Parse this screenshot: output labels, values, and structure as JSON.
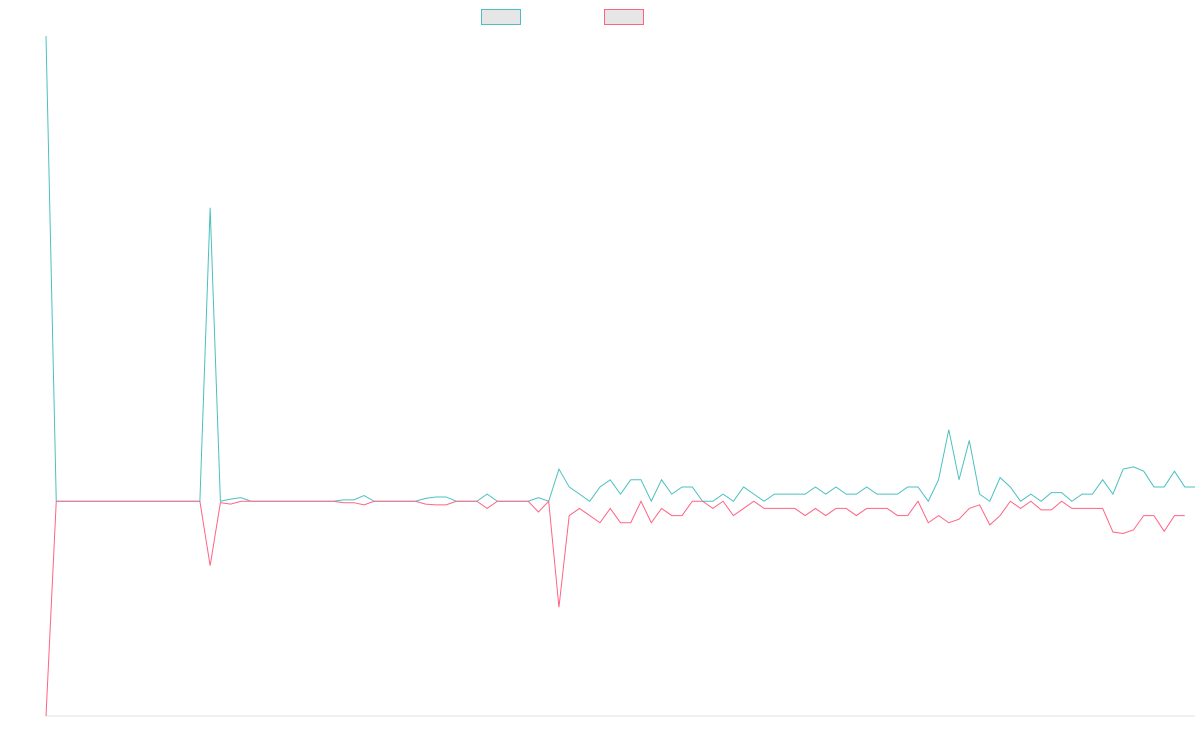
{
  "chart_data": {
    "type": "line",
    "title": "",
    "xlabel": "",
    "ylabel": "",
    "legend_position": "top-center",
    "grid": false,
    "ylim": [
      -300,
      650
    ],
    "series": [
      {
        "name": "",
        "color": "#4bc0c0",
        "values": [
          650,
          0,
          0,
          0,
          0,
          0,
          0,
          0,
          0,
          0,
          0,
          0,
          0,
          0,
          0,
          0,
          410,
          0,
          3,
          5,
          0,
          0,
          0,
          0,
          0,
          0,
          0,
          0,
          0,
          2,
          2,
          8,
          0,
          0,
          0,
          0,
          0,
          4,
          6,
          6,
          0,
          0,
          0,
          10,
          0,
          0,
          0,
          0,
          5,
          0,
          45,
          20,
          10,
          0,
          20,
          30,
          10,
          30,
          30,
          0,
          30,
          10,
          20,
          20,
          0,
          0,
          10,
          0,
          20,
          10,
          0,
          10,
          10,
          10,
          10,
          20,
          10,
          20,
          10,
          10,
          20,
          10,
          10,
          10,
          20,
          20,
          0,
          30,
          100,
          30,
          85,
          10,
          0,
          33,
          20,
          0,
          10,
          0,
          12,
          12,
          0,
          10,
          10,
          30,
          10,
          45,
          48,
          42,
          20,
          20,
          42,
          20,
          20
        ]
      },
      {
        "name": "",
        "color": "#ff6384",
        "values": [
          -300,
          0,
          0,
          0,
          0,
          0,
          0,
          0,
          0,
          0,
          0,
          0,
          0,
          0,
          0,
          0,
          -90,
          -2,
          -4,
          0,
          0,
          0,
          0,
          0,
          0,
          0,
          0,
          0,
          0,
          -2,
          -2,
          -5,
          0,
          0,
          0,
          0,
          0,
          -4,
          -5,
          -5,
          0,
          0,
          0,
          -10,
          0,
          0,
          0,
          0,
          -15,
          0,
          -148,
          -20,
          -10,
          -20,
          -30,
          -10,
          -30,
          -30,
          0,
          -30,
          -10,
          -20,
          -20,
          0,
          0,
          -10,
          0,
          -20,
          -10,
          0,
          -10,
          -10,
          -10,
          -10,
          -20,
          -10,
          -20,
          -10,
          -10,
          -20,
          -10,
          -10,
          -10,
          -20,
          -20,
          0,
          -30,
          -20,
          -30,
          -25,
          -10,
          -5,
          -33,
          -20,
          0,
          -10,
          0,
          -12,
          -12,
          0,
          -10,
          -10,
          -10,
          -10,
          -43,
          -45,
          -40,
          -20,
          -20,
          -42,
          -20,
          -20
        ]
      }
    ]
  },
  "legend": {
    "a_color": "#4bc0c0",
    "b_color": "#ff6384"
  }
}
